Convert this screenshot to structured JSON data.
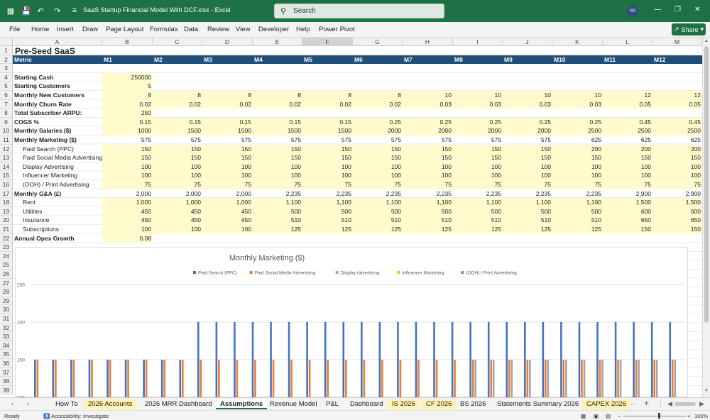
{
  "window": {
    "title": "SaaS Startup  Financial Model With DCF.xlsx  -  Excel",
    "search_placeholder": "Search",
    "user_initials": "RS"
  },
  "ribbon": {
    "tabs": [
      "File",
      "Home",
      "Insert",
      "Draw",
      "Page Layout",
      "Formulas",
      "Data",
      "Review",
      "View",
      "Developer",
      "Help",
      "Power Pivot"
    ],
    "share_label": "Share"
  },
  "columns": [
    "A",
    "B",
    "C",
    "D",
    "E",
    "F",
    "G",
    "H",
    "I",
    "J",
    "K",
    "L",
    "M"
  ],
  "row_numbers": [
    "1",
    "2",
    "3",
    "4",
    "5",
    "6",
    "7",
    "8",
    "9",
    "10",
    "11",
    "12",
    "13",
    "14",
    "15",
    "16",
    "17",
    "18",
    "19",
    "20",
    "21",
    "22",
    "23",
    "24",
    "25",
    "26",
    "27",
    "28",
    "29",
    "30",
    "31",
    "32",
    "33",
    "34",
    "35",
    "36",
    "37",
    "38",
    "39"
  ],
  "sheet": {
    "title": "Pre-Seed SaaS",
    "header": {
      "label": "Metric",
      "months": [
        "M1",
        "M2",
        "M3",
        "M4",
        "M5",
        "M6",
        "M7",
        "M8",
        "M9",
        "M10",
        "M11",
        "M12"
      ]
    },
    "rows": [
      {
        "r": 4,
        "label": "Starting Cash",
        "bold": true,
        "values": [
          "250000"
        ],
        "yellow": true
      },
      {
        "r": 5,
        "label": "Starting Customers",
        "bold": true,
        "values": [
          "5"
        ],
        "yellow": true
      },
      {
        "r": 6,
        "label": "Monthly New Customers",
        "bold": true,
        "values": [
          "8",
          "8",
          "8",
          "8",
          "8",
          "8",
          "10",
          "10",
          "10",
          "10",
          "12",
          "12"
        ],
        "yellow": true
      },
      {
        "r": 7,
        "label": "Monthly Churn Rate",
        "bold": true,
        "values": [
          "0.02",
          "0.02",
          "0.02",
          "0.02",
          "0.02",
          "0.02",
          "0.03",
          "0.03",
          "0.03",
          "0.03",
          "0.05",
          "0.05"
        ],
        "yellow": true
      },
      {
        "r": 8,
        "label": "Total Subscriber ARPU:",
        "bold": true,
        "values": [
          "250"
        ],
        "yellow": true
      },
      {
        "r": 9,
        "label": "COGS %",
        "bold": true,
        "values": [
          "0.15",
          "0.15",
          "0.15",
          "0.15",
          "0.15",
          "0.25",
          "0.25",
          "0.25",
          "0.25",
          "0.25",
          "0.45",
          "0.45"
        ],
        "yellow": true
      },
      {
        "r": 10,
        "label": "Monthly Salaries ($)",
        "bold": true,
        "values": [
          "1000",
          "1500",
          "1500",
          "1500",
          "1500",
          "2000",
          "2000",
          "2000",
          "2000",
          "2500",
          "2500",
          "2500"
        ],
        "yellow": true
      },
      {
        "r": 11,
        "label": "Monthly Marketing ($)",
        "bold": true,
        "values": [
          "575",
          "575",
          "575",
          "575",
          "575",
          "575",
          "575",
          "575",
          "575",
          "625",
          "625",
          "625"
        ],
        "yellow": false
      },
      {
        "r": 12,
        "label": "Paid Search (PPC)",
        "bold": false,
        "values": [
          "150",
          "150",
          "150",
          "150",
          "150",
          "150",
          "150",
          "150",
          "150",
          "200",
          "200",
          "200"
        ],
        "yellow": true
      },
      {
        "r": 13,
        "label": "Paid Social Media Advertising",
        "bold": false,
        "values": [
          "150",
          "150",
          "150",
          "150",
          "150",
          "150",
          "150",
          "150",
          "150",
          "150",
          "150",
          "150"
        ],
        "yellow": true
      },
      {
        "r": 14,
        "label": "Display Advertising",
        "bold": false,
        "values": [
          "100",
          "100",
          "100",
          "100",
          "100",
          "100",
          "100",
          "100",
          "100",
          "100",
          "100",
          "100"
        ],
        "yellow": true
      },
      {
        "r": 15,
        "label": "Influencer Marketing",
        "bold": false,
        "values": [
          "100",
          "100",
          "100",
          "100",
          "100",
          "100",
          "100",
          "100",
          "100",
          "100",
          "100",
          "100"
        ],
        "yellow": true
      },
      {
        "r": 16,
        "label": "(OOH) / Print Advertising",
        "bold": false,
        "values": [
          "75",
          "75",
          "75",
          "75",
          "75",
          "75",
          "75",
          "75",
          "75",
          "75",
          "75",
          "75"
        ],
        "yellow": true
      },
      {
        "r": 17,
        "label": "Monthly G&A (£)",
        "bold": true,
        "values": [
          "2,000",
          "2,000",
          "2,000",
          "2,235",
          "2,235",
          "2,235",
          "2,235",
          "2,235",
          "2,235",
          "2,235",
          "2,900",
          "2,900"
        ],
        "yellow": false
      },
      {
        "r": 18,
        "label": "Rent",
        "bold": false,
        "values": [
          "1,000",
          "1,000",
          "1,000",
          "1,100",
          "1,100",
          "1,100",
          "1,100",
          "1,100",
          "1,100",
          "1,100",
          "1,500",
          "1,500"
        ],
        "yellow": true
      },
      {
        "r": 19,
        "label": "Utilities",
        "bold": false,
        "values": [
          "450",
          "450",
          "450",
          "500",
          "500",
          "500",
          "500",
          "500",
          "500",
          "500",
          "600",
          "600"
        ],
        "yellow": true
      },
      {
        "r": 20,
        "label": "Insurance",
        "bold": false,
        "values": [
          "450",
          "450",
          "450",
          "510",
          "510",
          "510",
          "510",
          "510",
          "510",
          "510",
          "650",
          "650"
        ],
        "yellow": true
      },
      {
        "r": 21,
        "label": "Subscriptions",
        "bold": false,
        "values": [
          "100",
          "100",
          "100",
          "125",
          "125",
          "125",
          "125",
          "125",
          "125",
          "125",
          "150",
          "150"
        ],
        "yellow": true
      },
      {
        "r": 22,
        "label": "Annual Opex Growth",
        "bold": true,
        "values": [
          "0.08"
        ],
        "yellow": true
      }
    ]
  },
  "chart_data": {
    "type": "bar",
    "title": "Monthly Marketing ($)",
    "xlabel": "",
    "ylabel": "",
    "ylim": [
      0,
      250
    ],
    "yticks_visible": [
      250,
      200,
      150,
      100
    ],
    "legend": "top",
    "categories_visible": 36,
    "series": [
      {
        "name": "Paid Search (PPC)",
        "color": "#4472c4",
        "values": [
          150,
          150,
          150,
          150,
          150,
          150,
          150,
          150,
          150,
          200,
          200,
          200,
          200,
          200,
          200,
          200,
          200,
          200,
          200,
          200,
          200,
          200,
          200,
          200,
          200,
          200,
          200,
          200,
          200,
          200,
          200,
          200,
          200,
          200,
          200,
          200
        ]
      },
      {
        "name": "Paid Social Media Advertising",
        "color": "#ed7d31",
        "values": [
          150,
          150,
          150,
          150,
          150,
          150,
          150,
          150,
          150,
          150,
          150,
          150,
          150,
          150,
          150,
          150,
          150,
          150,
          150,
          150,
          150,
          150,
          150,
          150,
          150,
          150,
          150,
          150,
          150,
          150,
          150,
          150,
          150,
          150,
          150,
          150
        ]
      },
      {
        "name": "Display Advertising",
        "color": "#a5a5a5",
        "values": [
          100,
          100,
          100,
          100,
          100,
          100,
          100,
          100,
          100,
          100,
          100,
          100,
          100,
          100,
          100,
          100,
          100,
          100,
          100,
          100,
          100,
          100,
          100,
          100,
          150,
          150,
          150,
          150,
          150,
          150,
          150,
          150,
          150,
          150,
          150,
          150
        ]
      },
      {
        "name": "Influencer Marketing",
        "color": "#ffc000",
        "values": [
          100,
          100,
          100,
          100,
          100,
          100,
          100,
          100,
          100,
          100,
          100,
          100,
          100,
          100,
          100,
          100,
          100,
          100,
          100,
          100,
          100,
          100,
          100,
          100,
          100,
          100,
          100,
          100,
          100,
          100,
          100,
          100,
          100,
          100,
          100,
          100
        ]
      },
      {
        "name": "(OOH) / Print Advertising",
        "color": "#5b9bd5",
        "values": [
          75,
          75,
          75,
          75,
          75,
          75,
          75,
          75,
          75,
          75,
          75,
          75,
          75,
          75,
          75,
          75,
          75,
          75,
          75,
          75,
          75,
          75,
          75,
          75,
          75,
          75,
          75,
          75,
          75,
          75,
          75,
          75,
          75,
          75,
          75,
          75
        ]
      }
    ]
  },
  "sheet_tabs": [
    {
      "label": "How To",
      "style": "plain"
    },
    {
      "label": "2026 Accounts",
      "style": "yellow"
    },
    {
      "label": "2026 MRR Dashboard",
      "style": "plain"
    },
    {
      "label": "Assumptions",
      "style": "active"
    },
    {
      "label": "Revenue Model",
      "style": "plain"
    },
    {
      "label": "P&L",
      "style": "plain"
    },
    {
      "label": "Dashboard",
      "style": "plain"
    },
    {
      "label": "IS 2026",
      "style": "yellow"
    },
    {
      "label": "CF 2026",
      "style": "yellow"
    },
    {
      "label": "BS 2026",
      "style": "plain"
    },
    {
      "label": "Statements Summary 2026",
      "style": "plain"
    },
    {
      "label": "CAPEX 2026",
      "style": "yellow"
    }
  ],
  "status": {
    "ready": "Ready",
    "accessibility": "Accessibility: Investigate",
    "zoom": "100%"
  }
}
